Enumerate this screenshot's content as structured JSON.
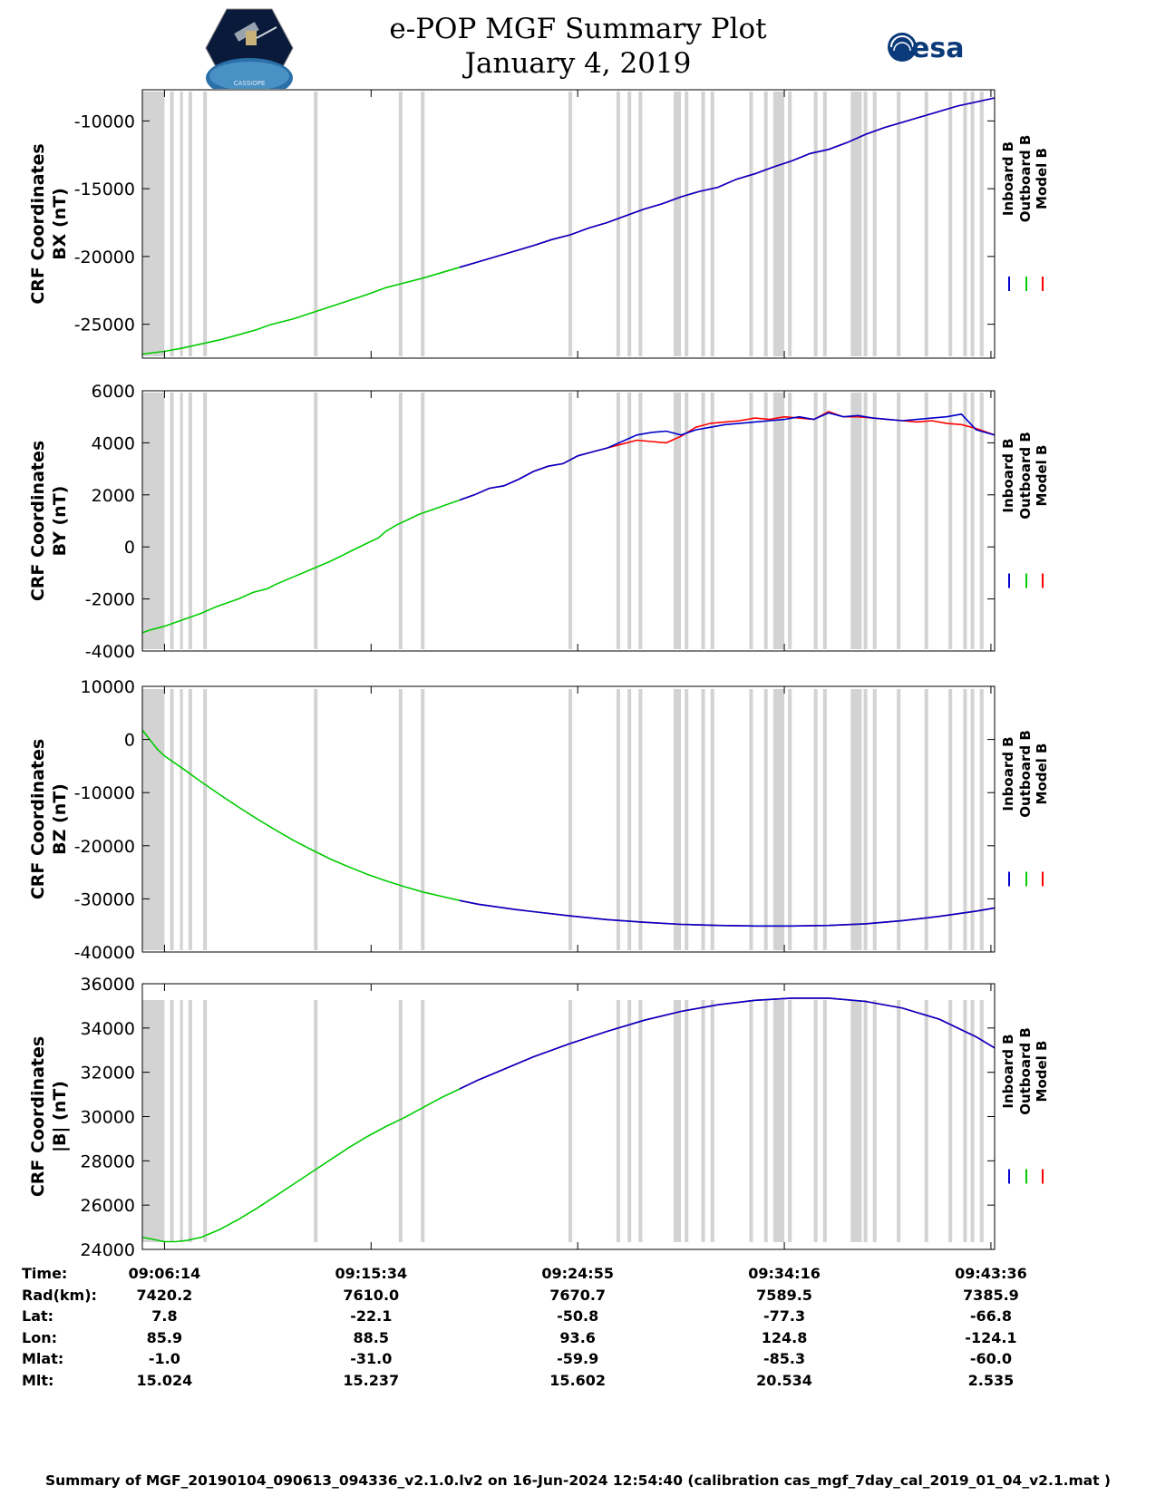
{
  "header": {
    "title": "e-POP MGF Summary Plot",
    "date": "January 4, 2019",
    "logo_left_text": "CASSIOPE",
    "logo_right_text": "esa"
  },
  "colors": {
    "inboard": "#0000cc",
    "outboard": "#00cc00",
    "model": "#ff0000",
    "gap": "#d3d3d3"
  },
  "legend": [
    "Inboard B",
    "Outboard B",
    "Model B"
  ],
  "x_ticks": [
    "09:06:14",
    "09:15:34",
    "09:24:55",
    "09:34:16",
    "09:43:36"
  ],
  "chart_data": [
    {
      "type": "line",
      "title": "",
      "ylabel": [
        "CRF Coordinates",
        "BX (nT)"
      ],
      "ylim": [
        -27500,
        -7700
      ],
      "yticks": [
        -25000,
        -20000,
        -15000,
        -10000
      ],
      "ytick_labels": [
        "-25000",
        "-20000",
        "-15000",
        "-10000"
      ],
      "x_minutes": [
        -6,
        0,
        5,
        10,
        15,
        20,
        25,
        28.5,
        35,
        40,
        45,
        50,
        55,
        60,
        65,
        70,
        75,
        80,
        85,
        90,
        95,
        100,
        105,
        110,
        115,
        120,
        125,
        130,
        135,
        140,
        145,
        150,
        155,
        160,
        165,
        170,
        175,
        180,
        185,
        190,
        195,
        200,
        205,
        210,
        215,
        220,
        225
      ],
      "series": [
        {
          "name": "Outboard B",
          "x_end": 80,
          "values": [
            -27200,
            -27000,
            -26750,
            -26450,
            -26150,
            -25780,
            -25400,
            -25050,
            -24600,
            -24150,
            -23700,
            -23250,
            -22800,
            -22300,
            -21950,
            -21600,
            -21200,
            -20800,
            -20400,
            -20000,
            -19600,
            -19200,
            -18750,
            -18400,
            -17900,
            -17500,
            -17000,
            -16500,
            -16100,
            -15600,
            -15200,
            -14900,
            -14300,
            -13900,
            -13400,
            -12950,
            -12400,
            -12100,
            -11600,
            -11000,
            -10500,
            -10100,
            -9700,
            -9300,
            -8900,
            -8600,
            -8300
          ]
        },
        {
          "name": "Model B",
          "x_start": 80,
          "values": [
            -27200,
            -27000,
            -26750,
            -26450,
            -26150,
            -25780,
            -25400,
            -25050,
            -24600,
            -24150,
            -23700,
            -23250,
            -22800,
            -22300,
            -21950,
            -21600,
            -21200,
            -20800,
            -20400,
            -20000,
            -19600,
            -19200,
            -18750,
            -18400,
            -17900,
            -17500,
            -17000,
            -16500,
            -16100,
            -15600,
            -15200,
            -14900,
            -14300,
            -13900,
            -13400,
            -12950,
            -12400,
            -12100,
            -11600,
            -11000,
            -10500,
            -10100,
            -9700,
            -9300,
            -8900,
            -8600,
            -8300
          ]
        },
        {
          "name": "Inboard B",
          "x_start": 80,
          "values": [
            -27200,
            -27000,
            -26750,
            -26450,
            -26150,
            -25780,
            -25400,
            -25050,
            -24600,
            -24150,
            -23700,
            -23250,
            -22800,
            -22300,
            -21950,
            -21600,
            -21200,
            -20800,
            -20400,
            -20000,
            -19600,
            -19200,
            -18750,
            -18400,
            -17900,
            -17500,
            -17000,
            -16500,
            -16100,
            -15600,
            -15200,
            -14900,
            -14300,
            -13900,
            -13400,
            -12950,
            -12400,
            -12100,
            -11600,
            -11000,
            -10500,
            -10100,
            -9700,
            -9300,
            -8900,
            -8600,
            -8300
          ]
        }
      ]
    },
    {
      "type": "line",
      "title": "",
      "ylabel": [
        "CRF Coordinates",
        "BY (nT)"
      ],
      "ylim": [
        -4000,
        6000
      ],
      "yticks": [
        -4000,
        -2000,
        0,
        2000,
        4000,
        6000
      ],
      "ytick_labels": [
        "-4000",
        "-2000",
        "0",
        "2000",
        "4000",
        "6000"
      ],
      "x_minutes": [
        -6,
        -4,
        0,
        3,
        6,
        10,
        14,
        17,
        20,
        24,
        28,
        30,
        35,
        40,
        45,
        50,
        54,
        58,
        60,
        63,
        66,
        69,
        72,
        76,
        80,
        84,
        88,
        92,
        96,
        100,
        104,
        108,
        112,
        116,
        120,
        124,
        128,
        132,
        136,
        140,
        144,
        148,
        152,
        156,
        160,
        164,
        168,
        172,
        176,
        180,
        184,
        188,
        192,
        196,
        200,
        204,
        208,
        212,
        216,
        220,
        225
      ],
      "series": [
        {
          "name": "Outboard B",
          "x_end": 80,
          "values": [
            -3300,
            -3200,
            -3050,
            -2900,
            -2750,
            -2550,
            -2300,
            -2150,
            -2000,
            -1750,
            -1600,
            -1450,
            -1150,
            -850,
            -550,
            -200,
            80,
            350,
            600,
            850,
            1050,
            1250,
            1400,
            1600,
            1800,
            2000,
            2250,
            2350,
            2600,
            2900,
            3100,
            3200,
            3500,
            3650,
            3800,
            4050,
            4300,
            4400,
            4450,
            4300,
            4500,
            4600,
            4700,
            4750,
            4800,
            4850,
            4900,
            5000,
            4900,
            5150,
            5000,
            5050,
            4950,
            4900,
            4850,
            4900,
            4950,
            5000,
            4900,
            4450,
            4300
          ]
        },
        {
          "name": "Model B",
          "x_start": 80,
          "values": [
            -3300,
            -3200,
            -3050,
            -2900,
            -2750,
            -2550,
            -2300,
            -2150,
            -2000,
            -1750,
            -1600,
            -1450,
            -1150,
            -850,
            -550,
            -200,
            80,
            350,
            600,
            850,
            1050,
            1250,
            1400,
            1600,
            1800,
            2000,
            2250,
            2350,
            2600,
            2900,
            3100,
            3200,
            3500,
            3650,
            3800,
            3950,
            4100,
            4050,
            4000,
            4250,
            4600,
            4750,
            4800,
            4850,
            4950,
            4900,
            5000,
            4950,
            4900,
            5200,
            5000,
            5000,
            4950,
            4900,
            4850,
            4800,
            4850,
            4750,
            4700,
            4550,
            4300
          ]
        },
        {
          "name": "Inboard B",
          "x_start": 80,
          "values": [
            -3300,
            -3200,
            -3050,
            -2900,
            -2750,
            -2550,
            -2300,
            -2150,
            -2000,
            -1750,
            -1600,
            -1450,
            -1150,
            -850,
            -550,
            -200,
            80,
            350,
            600,
            850,
            1050,
            1250,
            1400,
            1600,
            1800,
            2000,
            2250,
            2350,
            2600,
            2900,
            3100,
            3200,
            3500,
            3650,
            3800,
            4050,
            4300,
            4400,
            4450,
            4300,
            4500,
            4600,
            4700,
            4750,
            4800,
            4850,
            4900,
            5000,
            4900,
            5150,
            5000,
            5050,
            4950,
            4900,
            4850,
            4900,
            4950,
            5000,
            5100,
            4500,
            4300
          ]
        }
      ]
    },
    {
      "type": "line",
      "title": "",
      "ylabel": [
        "CRF Coordinates",
        "BZ (nT)"
      ],
      "ylim": [
        -40000,
        10000
      ],
      "yticks": [
        -40000,
        -30000,
        -20000,
        -10000,
        0,
        10000
      ],
      "ytick_labels": [
        "-40000",
        "-30000",
        "-20000",
        "-10000",
        "0",
        "10000"
      ],
      "x_minutes": [
        -6,
        -4,
        -2,
        0,
        5,
        10,
        15,
        20,
        25,
        30,
        35,
        40,
        45,
        50,
        55,
        60,
        65,
        70,
        75,
        80,
        85,
        90,
        95,
        100,
        110,
        120,
        130,
        140,
        150,
        160,
        170,
        180,
        190,
        200,
        210,
        220,
        225
      ],
      "series": [
        {
          "name": "Outboard B",
          "x_end": 80,
          "values": [
            1800,
            0,
            -1800,
            -3100,
            -5500,
            -8000,
            -10400,
            -12700,
            -14900,
            -17000,
            -19000,
            -20800,
            -22500,
            -24000,
            -25400,
            -26600,
            -27700,
            -28700,
            -29500,
            -30300,
            -31000,
            -31500,
            -32000,
            -32400,
            -33200,
            -33900,
            -34400,
            -34800,
            -35000,
            -35100,
            -35100,
            -35000,
            -34700,
            -34100,
            -33300,
            -32300,
            -31700
          ]
        },
        {
          "name": "Model B",
          "x_start": 80,
          "values": [
            1800,
            0,
            -1800,
            -3100,
            -5500,
            -8000,
            -10400,
            -12700,
            -14900,
            -17000,
            -19000,
            -20800,
            -22500,
            -24000,
            -25400,
            -26600,
            -27700,
            -28700,
            -29500,
            -30300,
            -31000,
            -31500,
            -32000,
            -32400,
            -33200,
            -33900,
            -34400,
            -34800,
            -35000,
            -35100,
            -35100,
            -35000,
            -34700,
            -34100,
            -33300,
            -32300,
            -31700
          ]
        },
        {
          "name": "Inboard B",
          "x_start": 80,
          "values": [
            1800,
            0,
            -1800,
            -3100,
            -5500,
            -8000,
            -10400,
            -12700,
            -14900,
            -17000,
            -19000,
            -20800,
            -22500,
            -24000,
            -25400,
            -26600,
            -27700,
            -28700,
            -29500,
            -30300,
            -31000,
            -31500,
            -32000,
            -32400,
            -33200,
            -33900,
            -34400,
            -34800,
            -35000,
            -35100,
            -35100,
            -35000,
            -34700,
            -34100,
            -33300,
            -32300,
            -31700
          ]
        }
      ]
    },
    {
      "type": "line",
      "title": "",
      "ylabel": [
        "CRF Coordinates",
        "|B| (nT)"
      ],
      "ylim": [
        24000,
        36000
      ],
      "yticks": [
        24000,
        26000,
        28000,
        30000,
        32000,
        34000,
        36000
      ],
      "ytick_labels": [
        "24000",
        "26000",
        "28000",
        "30000",
        "32000",
        "34000",
        "36000"
      ],
      "x_minutes": [
        -6,
        -3,
        0,
        3,
        6,
        10,
        15,
        20,
        25,
        30,
        35,
        40,
        45,
        50,
        55,
        60,
        65,
        70,
        75,
        80,
        85,
        90,
        100,
        110,
        120,
        130,
        140,
        150,
        160,
        170,
        180,
        190,
        200,
        210,
        220,
        225
      ],
      "series": [
        {
          "name": "Outboard B",
          "x_end": 80,
          "values": [
            24550,
            24450,
            24350,
            24350,
            24400,
            24550,
            24900,
            25350,
            25850,
            26400,
            26950,
            27500,
            28050,
            28600,
            29100,
            29550,
            29950,
            30400,
            30850,
            31250,
            31650,
            32000,
            32700,
            33300,
            33850,
            34350,
            34750,
            35050,
            35250,
            35350,
            35350,
            35200,
            34900,
            34400,
            33600,
            33100
          ]
        },
        {
          "name": "Model B",
          "x_start": 80,
          "values": [
            24550,
            24450,
            24350,
            24350,
            24400,
            24550,
            24900,
            25350,
            25850,
            26400,
            26950,
            27500,
            28050,
            28600,
            29100,
            29550,
            29950,
            30400,
            30850,
            31250,
            31650,
            32000,
            32700,
            33300,
            33850,
            34350,
            34750,
            35050,
            35250,
            35350,
            35350,
            35200,
            34900,
            34400,
            33600,
            33100
          ]
        },
        {
          "name": "Inboard B",
          "x_start": 80,
          "values": [
            24550,
            24450,
            24350,
            24350,
            24400,
            24550,
            24900,
            25350,
            25850,
            26400,
            26950,
            27500,
            28050,
            28600,
            29100,
            29550,
            29950,
            30400,
            30850,
            31250,
            31650,
            32000,
            32700,
            33300,
            33850,
            34350,
            34750,
            35050,
            35250,
            35350,
            35350,
            35200,
            34900,
            34400,
            33600,
            33100
          ]
        }
      ]
    }
  ],
  "x_axis": {
    "xlim_minutes": [
      -6,
      225
    ],
    "tick_minutes": [
      0,
      56,
      112,
      168,
      224
    ],
    "gap_intervals_minutes": [
      [
        -6,
        0
      ],
      [
        1.5,
        2.5
      ],
      [
        4.2,
        5
      ],
      [
        6.5,
        7.5
      ],
      [
        10.5,
        11.5
      ],
      [
        40.5,
        41.5
      ],
      [
        63.5,
        64.5
      ],
      [
        69.5,
        70.5
      ],
      [
        109.5,
        110.5
      ],
      [
        122.5,
        123.5
      ],
      [
        125.5,
        126.5
      ],
      [
        128.5,
        129.5
      ],
      [
        138,
        140
      ],
      [
        141,
        142
      ],
      [
        145.5,
        146.5
      ],
      [
        148,
        149
      ],
      [
        158.5,
        159.5
      ],
      [
        162.5,
        163.5
      ],
      [
        165,
        168
      ],
      [
        169,
        170
      ],
      [
        176,
        177
      ],
      [
        178.5,
        179.5
      ],
      [
        186,
        189
      ],
      [
        189.5,
        190.5
      ],
      [
        192,
        193
      ],
      [
        198.5,
        199.5
      ],
      [
        206,
        207
      ],
      [
        212.5,
        213.5
      ],
      [
        216.5,
        217.5
      ],
      [
        218.5,
        219.5
      ],
      [
        221,
        222
      ]
    ]
  },
  "ephemeris": {
    "labels": [
      "Time:",
      "Rad(km):",
      "Lat:",
      "Lon:",
      "Mlat:",
      "Mlt:"
    ],
    "columns": [
      [
        "09:06:14",
        "7420.2",
        "7.8",
        "85.9",
        "-1.0",
        "15.024"
      ],
      [
        "09:15:34",
        "7610.0",
        "-22.1",
        "88.5",
        "-31.0",
        "15.237"
      ],
      [
        "09:24:55",
        "7670.7",
        "-50.8",
        "93.6",
        "-59.9",
        "15.602"
      ],
      [
        "09:34:16",
        "7589.5",
        "-77.3",
        "124.8",
        "-85.3",
        "20.534"
      ],
      [
        "09:43:36",
        "7385.9",
        "-66.8",
        "-124.1",
        "-60.0",
        "2.535"
      ]
    ]
  },
  "footer": "Summary of MGF_20190104_090613_094336_v2.1.0.lv2 on 16-Jun-2024 12:54:40 (calibration cas_mgf_7day_cal_2019_01_04_v2.1.mat )"
}
